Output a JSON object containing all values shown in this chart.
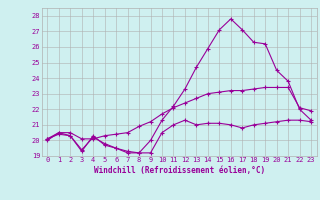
{
  "xlabel": "Windchill (Refroidissement éolien,°C)",
  "background_color": "#cff0f0",
  "grid_color": "#b0b0b0",
  "line_color": "#990099",
  "xlim": [
    -0.5,
    23.5
  ],
  "ylim": [
    19,
    28.5
  ],
  "yticks": [
    19,
    20,
    21,
    22,
    23,
    24,
    25,
    26,
    27,
    28
  ],
  "xticks": [
    0,
    1,
    2,
    3,
    4,
    5,
    6,
    7,
    8,
    9,
    10,
    11,
    12,
    13,
    14,
    15,
    16,
    17,
    18,
    19,
    20,
    21,
    22,
    23
  ],
  "line1_x": [
    0,
    1,
    2,
    3,
    4,
    5,
    6,
    7,
    8,
    9,
    10,
    11,
    12,
    13,
    14,
    15,
    16,
    17,
    18,
    19,
    20,
    21,
    22,
    23
  ],
  "line1_y": [
    20.1,
    20.4,
    20.3,
    19.3,
    20.3,
    19.7,
    19.5,
    19.3,
    19.2,
    19.2,
    20.5,
    21.0,
    21.3,
    21.0,
    21.1,
    21.1,
    21.0,
    20.8,
    21.0,
    21.1,
    21.2,
    21.3,
    21.3,
    21.2
  ],
  "line2_x": [
    0,
    1,
    2,
    3,
    4,
    5,
    6,
    7,
    8,
    9,
    10,
    11,
    12,
    13,
    14,
    15,
    16,
    17,
    18,
    19,
    20,
    21,
    22,
    23
  ],
  "line2_y": [
    20.0,
    20.5,
    20.5,
    20.1,
    20.1,
    20.3,
    20.4,
    20.5,
    20.9,
    21.2,
    21.7,
    22.1,
    22.4,
    22.7,
    23.0,
    23.1,
    23.2,
    23.2,
    23.3,
    23.4,
    23.4,
    23.4,
    22.1,
    21.9
  ],
  "line3_x": [
    0,
    1,
    2,
    3,
    4,
    5,
    6,
    7,
    8,
    9,
    10,
    11,
    12,
    13,
    14,
    15,
    16,
    17,
    18,
    19,
    20,
    21,
    22,
    23
  ],
  "line3_y": [
    20.1,
    20.5,
    20.3,
    19.4,
    20.2,
    19.8,
    19.5,
    19.2,
    19.2,
    20.0,
    21.3,
    22.2,
    23.3,
    24.7,
    25.9,
    27.1,
    27.8,
    27.1,
    26.3,
    26.2,
    24.5,
    23.8,
    22.0,
    21.3
  ],
  "xlabel_fontsize": 5.5,
  "ylabel_fontsize": 5.0,
  "tick_fontsize": 5.0
}
